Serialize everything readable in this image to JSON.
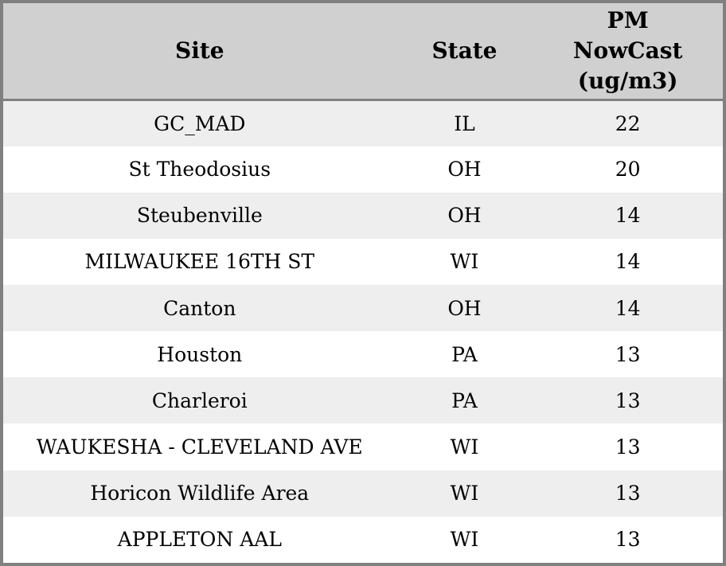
{
  "colors": {
    "border": "#808080",
    "header_bg": "#d0d0d0",
    "row_alt_bg": "#eeeeee",
    "row_bg": "#ffffff",
    "text": "#000000"
  },
  "header": {
    "site_label": "Site",
    "state_label": "State",
    "pm_label": "PM\nNowCast\n(ug/m3)"
  },
  "chart_data": {
    "type": "table",
    "title": "",
    "columns": [
      "Site",
      "State",
      "PM NowCast (ug/m3)"
    ],
    "rows": [
      [
        "GC_MAD",
        "IL",
        22
      ],
      [
        "St Theodosius",
        "OH",
        20
      ],
      [
        "Steubenville",
        "OH",
        14
      ],
      [
        "MILWAUKEE 16TH ST",
        "WI",
        14
      ],
      [
        "Canton",
        "OH",
        14
      ],
      [
        "Houston",
        "PA",
        13
      ],
      [
        "Charleroi",
        "PA",
        13
      ],
      [
        "WAUKESHA - CLEVELAND AVE",
        "WI",
        13
      ],
      [
        "Horicon Wildlife Area",
        "WI",
        13
      ],
      [
        "APPLETON AAL",
        "WI",
        13
      ]
    ]
  }
}
